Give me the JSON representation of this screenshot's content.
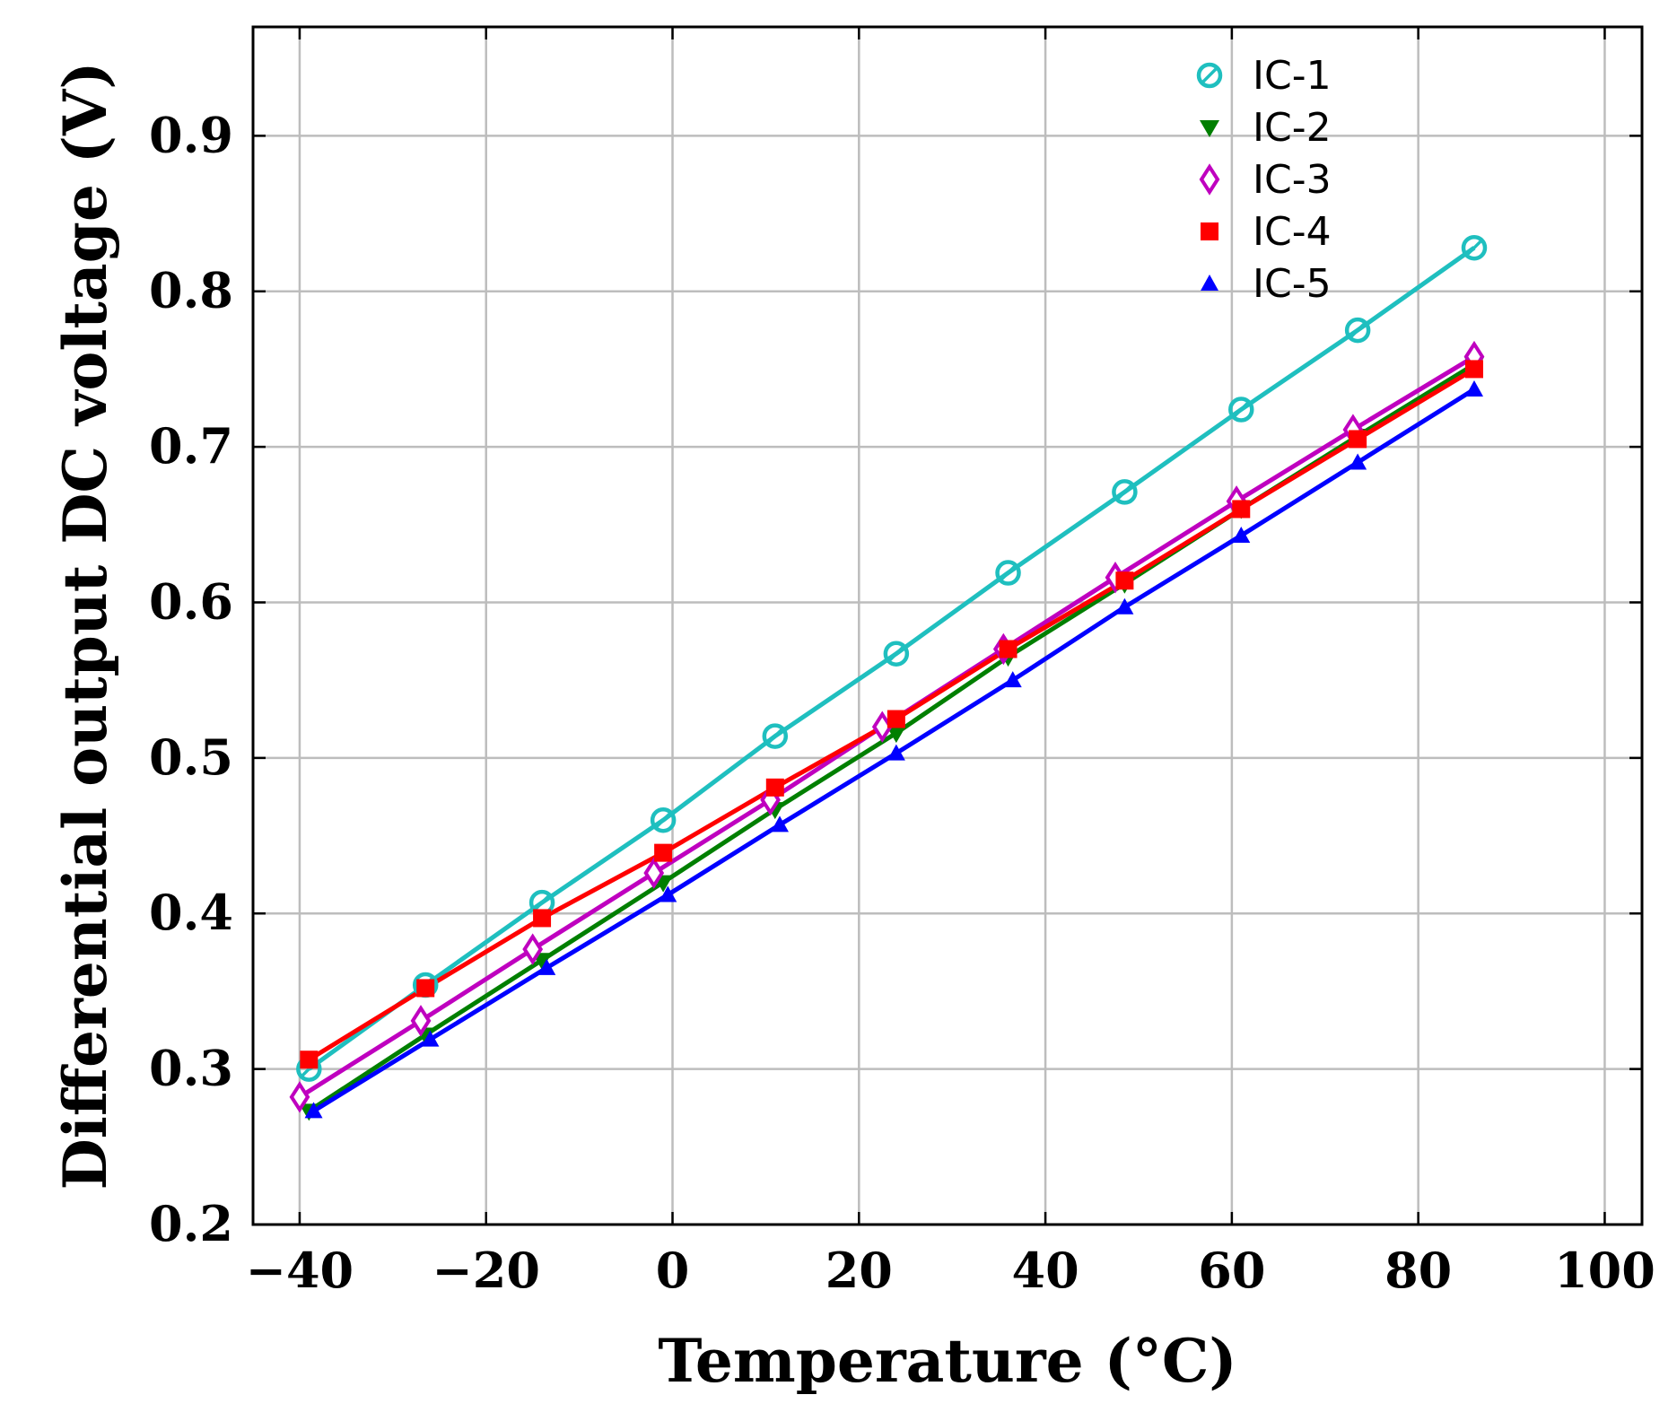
{
  "chart_data": {
    "type": "line",
    "title": "",
    "xlabel": "Temperature (°C)",
    "ylabel": "Differential output DC voltage (V)",
    "xlim": [
      -45,
      104
    ],
    "ylim": [
      0.2,
      0.97
    ],
    "xticks": [
      -40,
      -20,
      0,
      20,
      40,
      60,
      80,
      100
    ],
    "xtick_labels": [
      "−40",
      "−20",
      "0",
      "20",
      "40",
      "60",
      "80",
      "100"
    ],
    "yticks": [
      0.2,
      0.3,
      0.4,
      0.5,
      0.6,
      0.7,
      0.8,
      0.9
    ],
    "ytick_labels": [
      "0.2",
      "0.3",
      "0.4",
      "0.5",
      "0.6",
      "0.7",
      "0.8",
      "0.9"
    ],
    "grid": true,
    "legend_position": "top-right",
    "series": [
      {
        "name": "IC-1",
        "color": "#1fbfbf",
        "marker": "circle-slash",
        "x": [
          -39,
          -26.5,
          -14,
          -1,
          11,
          24,
          36,
          48.5,
          61,
          73.5,
          86
        ],
        "y": [
          0.3,
          0.354,
          0.407,
          0.46,
          0.514,
          0.567,
          0.619,
          0.671,
          0.724,
          0.775,
          0.828
        ]
      },
      {
        "name": "IC-2",
        "color": "#007f00",
        "marker": "triangle-down",
        "x": [
          -39,
          -26.5,
          -14,
          -1,
          11,
          24,
          36,
          48.5,
          61,
          73.5,
          86
        ],
        "y": [
          0.273,
          0.322,
          0.37,
          0.42,
          0.467,
          0.516,
          0.565,
          0.612,
          0.66,
          0.707,
          0.753
        ]
      },
      {
        "name": "IC-3",
        "color": "#bf00bf",
        "marker": "diamond",
        "x": [
          -40,
          -27,
          -15,
          -2,
          10.5,
          22.5,
          35.5,
          47.5,
          60.5,
          73,
          86
        ],
        "y": [
          0.282,
          0.331,
          0.377,
          0.426,
          0.473,
          0.52,
          0.57,
          0.616,
          0.665,
          0.711,
          0.758
        ]
      },
      {
        "name": "IC-4",
        "color": "#ff0000",
        "marker": "square",
        "x": [
          -39,
          -26.5,
          -14,
          -1,
          11,
          24,
          36,
          48.5,
          61,
          73.5,
          86
        ],
        "y": [
          0.306,
          0.352,
          0.397,
          0.439,
          0.481,
          0.525,
          0.57,
          0.614,
          0.66,
          0.705,
          0.75
        ]
      },
      {
        "name": "IC-5",
        "color": "#0000ff",
        "marker": "triangle-up",
        "x": [
          -38.5,
          -26,
          -13.5,
          -0.5,
          11.5,
          24,
          36.5,
          48.5,
          61,
          73.5,
          86
        ],
        "y": [
          0.273,
          0.319,
          0.365,
          0.412,
          0.457,
          0.503,
          0.55,
          0.597,
          0.643,
          0.69,
          0.737
        ]
      }
    ]
  }
}
